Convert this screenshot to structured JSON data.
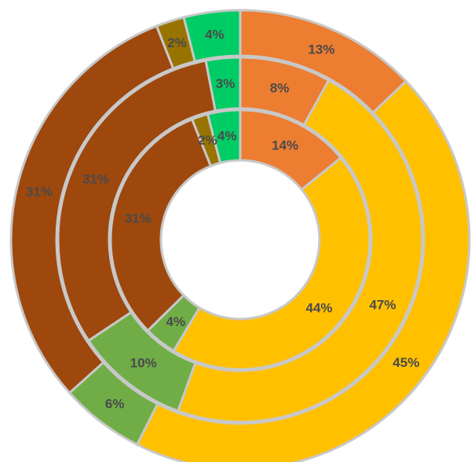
{
  "chart_data": {
    "type": "pie",
    "subtype": "multi-ring-donut",
    "title": "",
    "legend": "none",
    "rings": [
      {
        "name": "",
        "level": "outer",
        "slices": [
          {
            "value": 13,
            "label": "13%",
            "color": "#ED7D31"
          },
          {
            "value": 45,
            "label": "45%",
            "color": "#FFC000"
          },
          {
            "value": 6,
            "label": "6%",
            "color": "#70AD47"
          },
          {
            "value": 31,
            "label": "31%",
            "color": "#9E480E"
          },
          {
            "value": 2,
            "label": "2%",
            "color": "#997300"
          },
          {
            "value": 4,
            "label": "4%",
            "color": "#00CC66"
          }
        ]
      },
      {
        "name": "",
        "level": "middle",
        "slices": [
          {
            "value": 8,
            "label": "8%",
            "color": "#ED7D31"
          },
          {
            "value": 47,
            "label": "47%",
            "color": "#FFC000"
          },
          {
            "value": 10,
            "label": "10%",
            "color": "#70AD47"
          },
          {
            "value": 31,
            "label": "31%",
            "color": "#9E480E"
          },
          {
            "value": 0,
            "label": "",
            "color": "#997300"
          },
          {
            "value": 3,
            "label": "3%",
            "color": "#00CC66"
          }
        ]
      },
      {
        "name": "",
        "level": "inner",
        "slices": [
          {
            "value": 14,
            "label": "14%",
            "color": "#ED7D31"
          },
          {
            "value": 44,
            "label": "44%",
            "color": "#FFC000"
          },
          {
            "value": 4,
            "label": "4%",
            "color": "#70AD47"
          },
          {
            "value": 31,
            "label": "31%",
            "color": "#9E480E"
          },
          {
            "value": 2,
            "label": "2%",
            "color": "#997300"
          },
          {
            "value": 4,
            "label": "4%",
            "color": "#00CC66"
          }
        ]
      }
    ]
  }
}
